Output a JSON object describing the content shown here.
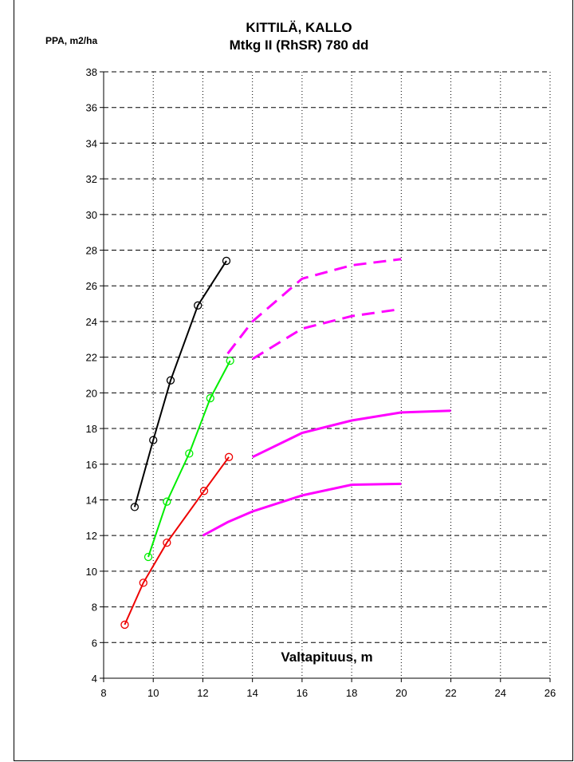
{
  "chart_data": {
    "type": "line",
    "title": "KITTILÄ, KALLO",
    "subtitle": "Mtkg II (RhSR) 780 dd",
    "ylabel": "PPA, m2/ha",
    "xlabel": "Valtapituus, m",
    "xlim": [
      8,
      26
    ],
    "ylim": [
      4,
      38
    ],
    "xticks": [
      8,
      10,
      12,
      14,
      16,
      18,
      20,
      22,
      24,
      26
    ],
    "yticks": [
      4,
      6,
      8,
      10,
      12,
      14,
      16,
      18,
      20,
      22,
      24,
      26,
      28,
      30,
      32,
      34,
      36,
      38
    ],
    "grid": "horizontal dashed, vertical dotted",
    "legend": "none",
    "series": [
      {
        "color": "#000000",
        "style": "solid",
        "markers": "circle",
        "x": [
          9.25,
          10.0,
          10.7,
          11.8,
          12.95
        ],
        "y": [
          13.6,
          17.35,
          20.7,
          24.9,
          27.4
        ]
      },
      {
        "color": "#00ee00",
        "style": "solid",
        "markers": "circle",
        "x": [
          9.8,
          10.55,
          11.45,
          12.3,
          13.1
        ],
        "y": [
          10.8,
          13.9,
          16.6,
          19.7,
          21.8
        ]
      },
      {
        "color": "#ee0000",
        "style": "solid",
        "markers": "circle",
        "x": [
          8.85,
          9.6,
          10.55,
          12.05,
          13.05
        ],
        "y": [
          7.0,
          9.35,
          11.6,
          14.5,
          16.4
        ]
      },
      {
        "color": "#ff00ff",
        "style": "dashed",
        "markers": "none",
        "x": [
          13.0,
          14.0,
          16.0,
          18.0,
          20.0
        ],
        "y": [
          22.2,
          24.0,
          26.4,
          27.15,
          27.5
        ]
      },
      {
        "color": "#ff00ff",
        "style": "dashed",
        "markers": "none",
        "x": [
          14.0,
          16.0,
          18.0,
          20.0
        ],
        "y": [
          21.9,
          23.6,
          24.3,
          24.7
        ]
      },
      {
        "color": "#ff00ff",
        "style": "solid",
        "markers": "none",
        "x": [
          14.0,
          16.0,
          18.0,
          20.0,
          22.0
        ],
        "y": [
          16.4,
          17.75,
          18.45,
          18.9,
          19.0
        ]
      },
      {
        "color": "#ff00ff",
        "style": "solid",
        "markers": "none",
        "x": [
          12.0,
          13.0,
          14.0,
          16.0,
          18.0,
          20.0
        ],
        "y": [
          12.0,
          12.75,
          13.35,
          14.25,
          14.85,
          14.9
        ]
      }
    ]
  }
}
